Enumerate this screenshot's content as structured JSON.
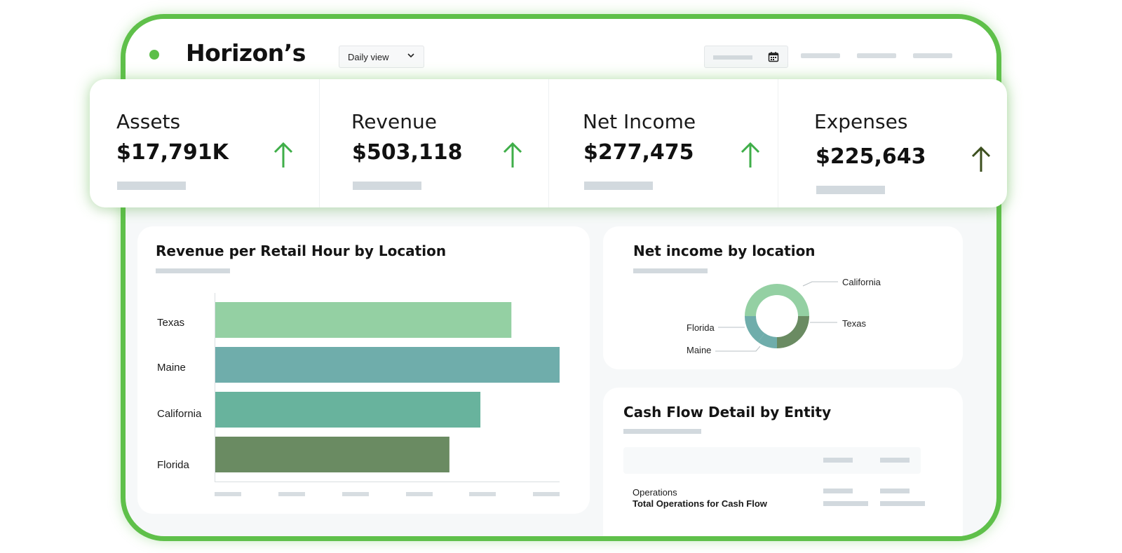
{
  "header": {
    "brand": "Horizon’s",
    "view_select": "Daily view"
  },
  "kpis": [
    {
      "label": "Assets",
      "value": "$17,791K"
    },
    {
      "label": "Revenue",
      "value": "$503,118"
    },
    {
      "label": "Net Income",
      "value": "$277,475"
    },
    {
      "label": "Expenses",
      "value": "$225,643"
    }
  ],
  "colors": {
    "accent_green": "#5cbf49",
    "arrow_green": "#3fae49",
    "arrow_dark": "#3c4f1e",
    "bar_texas": "#94d0a3",
    "bar_maine": "#6fadab",
    "bar_california": "#68b39d",
    "bar_florida": "#6a8b62"
  },
  "revenue_panel": {
    "title": "Revenue per Retail Hour by Location"
  },
  "net_income_panel": {
    "title": "Net income by location",
    "labels": {
      "california": "California",
      "texas": "Texas",
      "florida": "Florida",
      "maine": "Maine"
    }
  },
  "cash_flow_panel": {
    "title": "Cash Flow Detail by Entity",
    "row1": "Operations",
    "row2": "Total Operations for Cash Flow"
  },
  "chart_data": [
    {
      "type": "bar",
      "orientation": "horizontal",
      "title": "Revenue per Retail Hour by Location",
      "categories": [
        "Texas",
        "Maine",
        "California",
        "Florida"
      ],
      "values": [
        86,
        100,
        77,
        68
      ],
      "xlim": [
        0,
        100
      ]
    },
    {
      "type": "pie",
      "style": "donut",
      "title": "Net income by location",
      "categories": [
        "California",
        "Texas",
        "Maine",
        "Florida"
      ],
      "values": [
        50,
        25,
        10,
        15
      ]
    }
  ]
}
